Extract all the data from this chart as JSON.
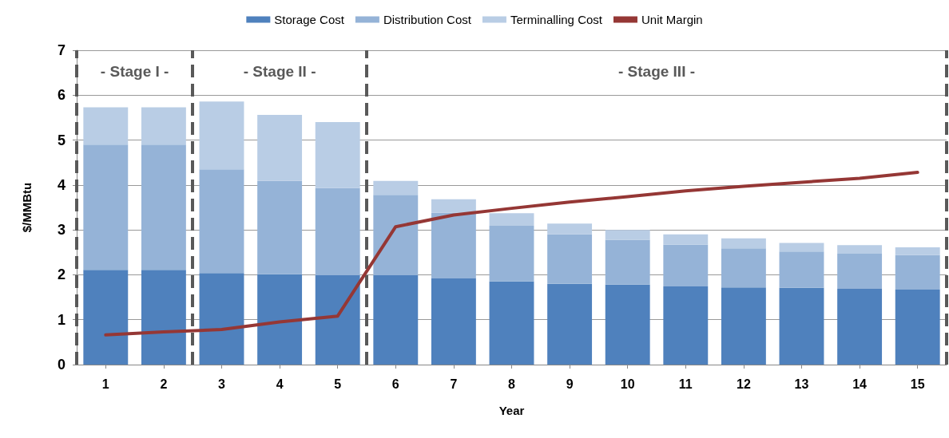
{
  "chart_data": {
    "type": "bar",
    "stacked": true,
    "xlabel": "Year",
    "ylabel": "$/MMBtu",
    "x": [
      1,
      2,
      3,
      4,
      5,
      6,
      7,
      8,
      9,
      10,
      11,
      12,
      13,
      14,
      15
    ],
    "xlim": [
      0.5,
      15.5
    ],
    "xticks": [
      1,
      2,
      3,
      4,
      5,
      6,
      7,
      8,
      9,
      10,
      11,
      12,
      13,
      14,
      15
    ],
    "ylim": [
      0,
      7
    ],
    "yticks": [
      0,
      1,
      2,
      3,
      4,
      5,
      6,
      7
    ],
    "grid": "y",
    "legend": "top",
    "series": [
      {
        "name": "Storage Cost",
        "color": "#4f81bd",
        "values": [
          2.11,
          2.11,
          2.04,
          2.01,
          1.99,
          1.99,
          1.92,
          1.85,
          1.8,
          1.78,
          1.74,
          1.72,
          1.71,
          1.69,
          1.67
        ]
      },
      {
        "name": "Distribution Cost",
        "color": "#95b3d7",
        "values": [
          2.79,
          2.79,
          2.31,
          2.08,
          1.94,
          1.79,
          1.46,
          1.24,
          1.1,
          1.0,
          0.93,
          0.87,
          0.81,
          0.78,
          0.77
        ]
      },
      {
        "name": "Terminalling Cost",
        "color": "#b9cde5",
        "values": [
          0.83,
          0.83,
          1.51,
          1.47,
          1.47,
          0.31,
          0.3,
          0.28,
          0.24,
          0.22,
          0.23,
          0.22,
          0.19,
          0.19,
          0.17
        ]
      },
      {
        "name": "Unit Margin",
        "type": "line",
        "color": "#953735",
        "marker": "none",
        "values": [
          0.66,
          0.73,
          0.78,
          0.95,
          1.08,
          3.07,
          3.33,
          3.48,
          3.62,
          3.74,
          3.87,
          3.97,
          4.06,
          4.15,
          4.28
        ]
      }
    ],
    "ref_lines": [
      {
        "axis": "x",
        "value": 0.5,
        "color": "#595959",
        "line_style": "dashed"
      },
      {
        "axis": "x",
        "value": 2.5,
        "color": "#595959",
        "line_style": "dashed"
      },
      {
        "axis": "x",
        "value": 5.5,
        "color": "#595959",
        "line_style": "dashed"
      },
      {
        "axis": "x",
        "value": 15.5,
        "color": "#595959",
        "line_style": "dashed"
      }
    ],
    "annotations": [
      "- Stage I -",
      "- Stage II -",
      "- Stage III -"
    ]
  }
}
